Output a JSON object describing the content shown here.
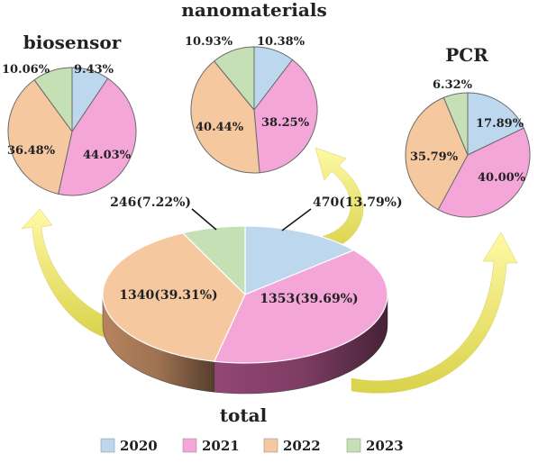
{
  "legend": [
    {
      "label": "2020",
      "color": "#bdd7ee"
    },
    {
      "label": "2021",
      "color": "#f4a6d8"
    },
    {
      "label": "2022",
      "color": "#f5c8a0"
    },
    {
      "label": "2023",
      "color": "#c5e0b4"
    }
  ],
  "chart_data": [
    {
      "type": "pie",
      "title": "total",
      "categories": [
        "2020",
        "2021",
        "2022",
        "2023"
      ],
      "values": [
        470,
        1353,
        1340,
        246
      ],
      "labels": [
        "470(13.79%)",
        "1353(39.69%)",
        "1340(39.31%)",
        "246(7.22%)"
      ]
    },
    {
      "type": "pie",
      "title": "biosensor",
      "categories": [
        "2020",
        "2021",
        "2022",
        "2023"
      ],
      "values": [
        9.43,
        44.03,
        36.48,
        10.06
      ],
      "labels": [
        "9.43%",
        "44.03%",
        "36.48%",
        "10.06%"
      ]
    },
    {
      "type": "pie",
      "title": "nanomaterials",
      "categories": [
        "2020",
        "2021",
        "2022",
        "2023"
      ],
      "values": [
        10.38,
        38.25,
        40.44,
        10.93
      ],
      "labels": [
        "10.38%",
        "38.25%",
        "40.44%",
        "10.93%"
      ]
    },
    {
      "type": "pie",
      "title": "PCR",
      "categories": [
        "2020",
        "2021",
        "2022",
        "2023"
      ],
      "values": [
        17.89,
        40.0,
        35.79,
        6.32
      ],
      "labels": [
        "17.89%",
        "40.00%",
        "35.79%",
        "6.32%"
      ]
    }
  ]
}
